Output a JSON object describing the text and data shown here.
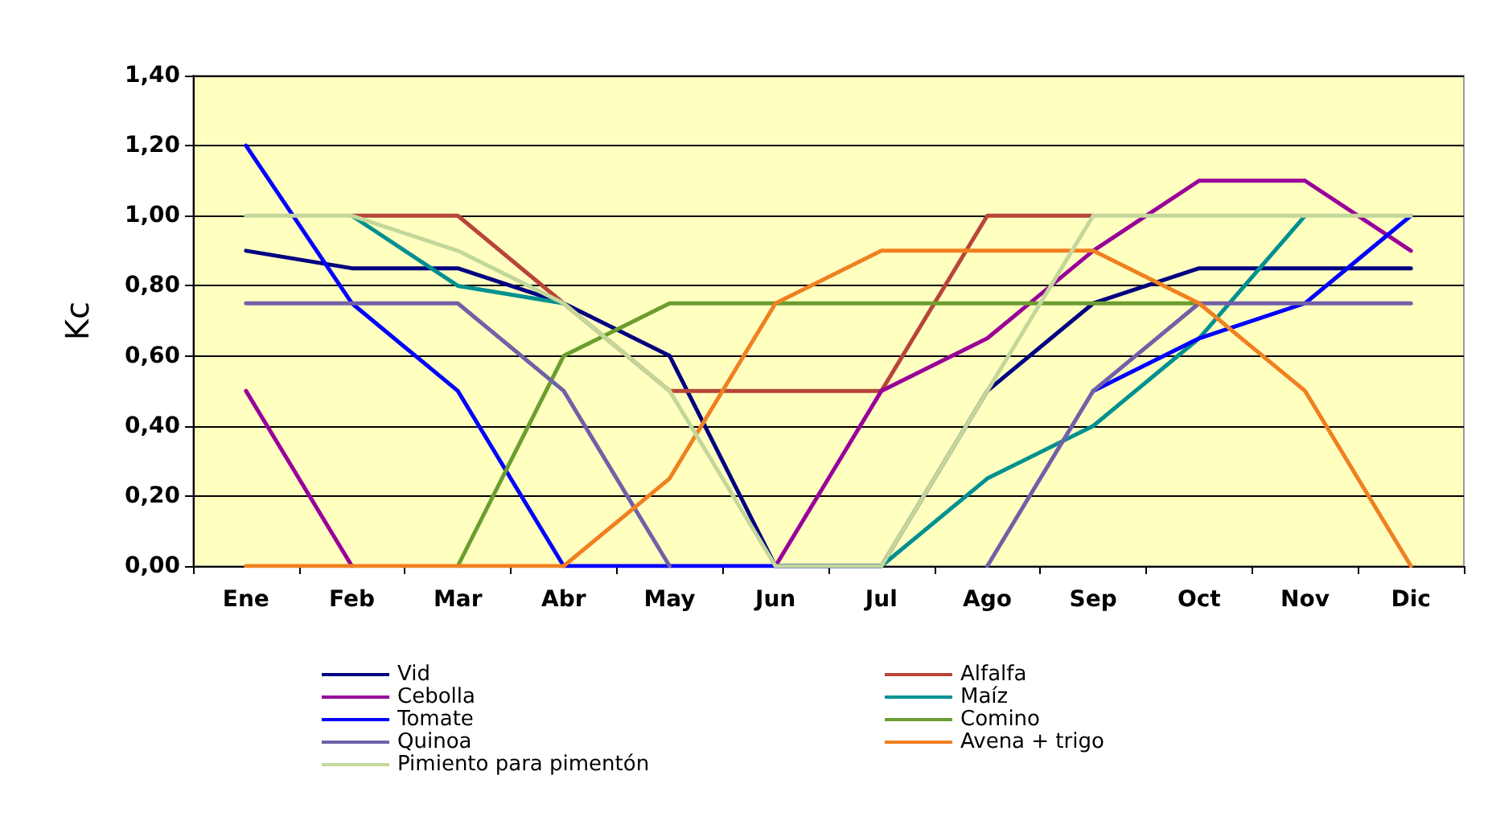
{
  "chart_data": {
    "type": "line",
    "ylabel": "Kc",
    "categories": [
      "Ene",
      "Feb",
      "Mar",
      "Abr",
      "May",
      "Jun",
      "Jul",
      "Ago",
      "Sep",
      "Oct",
      "Nov",
      "Dic"
    ],
    "series": [
      {
        "name": "Vid",
        "color": "#000080",
        "values": [
          0.9,
          0.85,
          0.85,
          0.75,
          0.6,
          0,
          0,
          0.5,
          0.75,
          0.85,
          0.85,
          0.85
        ]
      },
      {
        "name": "Alfalfa",
        "color": "#b8453a",
        "values": [
          null,
          1.0,
          1.0,
          0.75,
          0.5,
          0.5,
          0.5,
          1.0,
          1.0,
          null,
          null,
          null
        ]
      },
      {
        "name": "Cebolla",
        "color": "#990099",
        "values": [
          0.5,
          0,
          null,
          null,
          null,
          0,
          0.5,
          0.65,
          0.9,
          1.1,
          1.1,
          0.9
        ]
      },
      {
        "name": "Maíz",
        "color": "#009090",
        "values": [
          null,
          1.0,
          0.8,
          0.75,
          null,
          0,
          0,
          0.25,
          0.4,
          0.65,
          1.0,
          null
        ]
      },
      {
        "name": "Tomate",
        "color": "#0000ff",
        "values": [
          1.2,
          0.75,
          0.5,
          0,
          0,
          0,
          0,
          null,
          0.5,
          0.65,
          0.75,
          1.0
        ]
      },
      {
        "name": "Comino",
        "color": "#6b9e2f",
        "values": [
          null,
          null,
          0,
          0.6,
          0.75,
          0.75,
          0.75,
          0.75,
          0.75,
          0.75,
          null,
          null
        ]
      },
      {
        "name": "Quinoa",
        "color": "#7060a8",
        "values": [
          0.75,
          0.75,
          0.75,
          0.5,
          0,
          null,
          null,
          0,
          0.5,
          0.75,
          0.75,
          0.75
        ]
      },
      {
        "name": "Avena + trigo",
        "color": "#f08020",
        "values": [
          0,
          0,
          0,
          0,
          0.25,
          0.75,
          0.9,
          0.9,
          0.9,
          0.75,
          0.5,
          0
        ]
      },
      {
        "name": "Pimiento para pimentón",
        "color": "#c4d79b",
        "values": [
          1.0,
          1.0,
          0.9,
          0.75,
          0.5,
          0,
          0,
          0.5,
          1.0,
          1.0,
          1.0,
          1.0
        ]
      }
    ],
    "ylim": [
      0,
      1.4
    ],
    "yticks": [
      {
        "value": 0,
        "label": "0,00"
      },
      {
        "value": 0.2,
        "label": "0,20"
      },
      {
        "value": 0.4,
        "label": "0,40"
      },
      {
        "value": 0.6,
        "label": "0,60"
      },
      {
        "value": 0.8,
        "label": "0,80"
      },
      {
        "value": 1.0,
        "label": "1,00"
      },
      {
        "value": 1.2,
        "label": "1,20"
      },
      {
        "value": 1.4,
        "label": "1,40"
      }
    ],
    "grid": "y",
    "legend": "bottom",
    "marker": "none",
    "line_style": "solid"
  }
}
